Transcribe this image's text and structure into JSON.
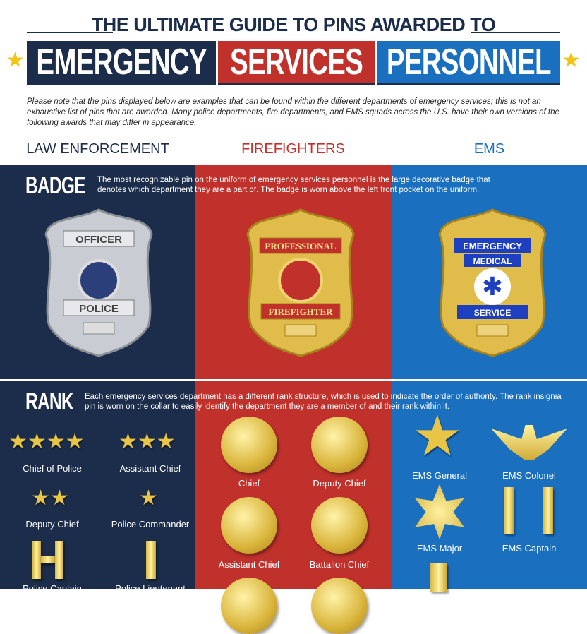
{
  "header": {
    "title": "THE ULTIMATE GUIDE TO PINS AWARDED TO",
    "banner": [
      "EMERGENCY",
      "SERVICES",
      "PERSONNEL"
    ]
  },
  "note": "Please note that the pins displayed below are examples that can be found within the different departments of emergency services; this is not an exhaustive list of pins that are awarded. Many police departments, fire departments, and EMS squads across the U.S. have their own versions of the following awards that may differ in appearance.",
  "columns": [
    "LAW ENFORCEMENT",
    "FIREFIGHTERS",
    "EMS"
  ],
  "colors": {
    "navy": "#1b2d4a",
    "red": "#c1312c",
    "blue": "#1a6fbf",
    "gold": "#e8c547"
  },
  "badge": {
    "title": "BADGE",
    "description": "The most recognizable pin on the uniform of emergency services personnel is the large decorative badge that denotes which department they are a part of. The badge is worn above the left front pocket on the uniform.",
    "police": {
      "top": "OFFICER",
      "bottom": "POLICE"
    },
    "fire": {
      "top": "PROFESSIONAL",
      "bottom": "FIREFIGHTER"
    },
    "ems": {
      "top": "EMERGENCY",
      "mid": "MEDICAL",
      "bottom": "SERVICE"
    }
  },
  "rank": {
    "title": "RANK",
    "description": "Each emergency services department has a different rank structure, which is used to indicate the order of authority. The rank insignia pin is worn on the collar to easily identify the department they are a member of and their rank within it.",
    "police": [
      "Chief of Police",
      "Assistant Chief",
      "Deputy Chief",
      "Police Commander",
      "Police Captain",
      "Police Lieutenant"
    ],
    "fire": [
      "Chief",
      "Deputy Chief",
      "Assistant Chief",
      "Battalion Chief"
    ],
    "ems": [
      "EMS General",
      "EMS Colonel",
      "EMS Major",
      "EMS Captain"
    ]
  }
}
